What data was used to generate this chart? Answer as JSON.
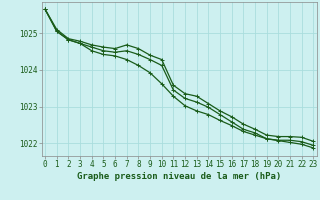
{
  "background_color": "#cdf0f0",
  "grid_color": "#aadddd",
  "line_color": "#1a5c1a",
  "xlabel": "Graphe pression niveau de la mer (hPa)",
  "xlabel_fontsize": 6.5,
  "tick_fontsize": 5.5,
  "ylim": [
    1021.65,
    1025.85
  ],
  "xlim": [
    -0.3,
    23.3
  ],
  "yticks": [
    1022,
    1023,
    1024,
    1025
  ],
  "xticks": [
    0,
    1,
    2,
    3,
    4,
    5,
    6,
    7,
    8,
    9,
    10,
    11,
    12,
    13,
    14,
    15,
    16,
    17,
    18,
    19,
    20,
    21,
    22,
    23
  ],
  "series1": [
    1025.65,
    1025.1,
    1024.85,
    1024.78,
    1024.68,
    1024.62,
    1024.58,
    1024.68,
    1024.58,
    1024.4,
    1024.28,
    1023.58,
    1023.35,
    1023.28,
    1023.08,
    1022.88,
    1022.72,
    1022.52,
    1022.38,
    1022.22,
    1022.18,
    1022.18,
    1022.16,
    1022.05
  ],
  "series2": [
    1025.65,
    1025.05,
    1024.82,
    1024.72,
    1024.62,
    1024.52,
    1024.48,
    1024.52,
    1024.42,
    1024.28,
    1024.12,
    1023.45,
    1023.22,
    1023.12,
    1022.98,
    1022.78,
    1022.58,
    1022.38,
    1022.28,
    1022.12,
    1022.08,
    1022.08,
    1022.04,
    1021.94
  ],
  "series3": [
    1025.65,
    1025.05,
    1024.82,
    1024.72,
    1024.52,
    1024.42,
    1024.38,
    1024.28,
    1024.12,
    1023.92,
    1023.62,
    1023.28,
    1023.02,
    1022.88,
    1022.78,
    1022.62,
    1022.48,
    1022.32,
    1022.22,
    1022.12,
    1022.07,
    1022.02,
    1021.97,
    1021.87
  ]
}
